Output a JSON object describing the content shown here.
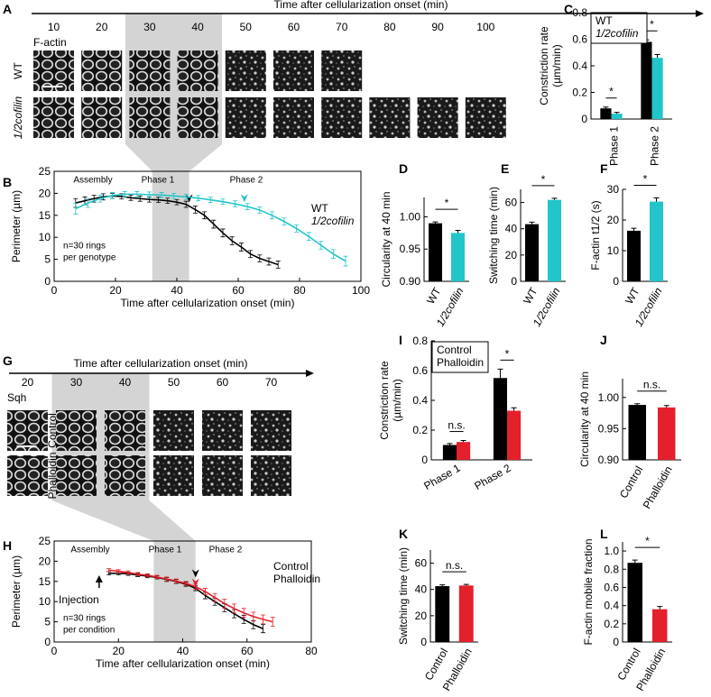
{
  "image_panels": [
    {
      "panel": "A",
      "axis_label": "Time after cellularization onset (min)",
      "times": [
        10,
        20,
        30,
        40,
        50,
        60,
        70,
        80,
        90,
        100
      ],
      "stain": "F-actin",
      "rows": [
        {
          "label": "WT",
          "color": "#000000"
        },
        {
          "label": "1/2cofilin",
          "color": "#22c5c9"
        }
      ]
    },
    {
      "panel": "G",
      "axis_label": "Time after cellularization onset (min)",
      "times": [
        20,
        30,
        40,
        50,
        60,
        70
      ],
      "stain": "Sqh",
      "rows": [
        {
          "label": "Control",
          "color": "#000000"
        },
        {
          "label": "Phalloidin",
          "color": "#e3202b"
        }
      ]
    }
  ],
  "chart_data": [
    {
      "panel": "C",
      "type": "bar",
      "ylabel": [
        "Constriction rate",
        "(µm/min)"
      ],
      "categories": [
        "Phase 1",
        "Phase 2"
      ],
      "series": [
        {
          "name": "WT",
          "color": "#000000",
          "values": [
            0.08,
            0.58
          ],
          "errors": [
            0.01,
            0.015
          ]
        },
        {
          "name": "1/2cofilin",
          "color": "#22c5c9",
          "values": [
            0.04,
            0.46
          ],
          "errors": [
            0.01,
            0.025
          ]
        }
      ],
      "ylim": [
        0,
        0.8
      ],
      "yticks": [
        0,
        0.2,
        0.4,
        0.6,
        0.8
      ],
      "significance": [
        "*",
        "*"
      ]
    },
    {
      "panel": "B",
      "type": "line",
      "xlabel": "Time after cellularization onset (min)",
      "ylabel": [
        "Perimeter (µm)"
      ],
      "xlim": [
        0,
        100
      ],
      "ylim": [
        0,
        25
      ],
      "xticks": [
        0,
        20,
        40,
        60,
        80,
        100
      ],
      "yticks": [
        0,
        5,
        10,
        15,
        20,
        25
      ],
      "phases": [
        "Assembly",
        "Phase 1",
        "Phase 2"
      ],
      "shade": [
        32,
        44
      ],
      "note": [
        "n=30 rings",
        "per genotype"
      ],
      "series": [
        {
          "name": "WT",
          "color": "#000000",
          "arrow_x": 44,
          "x": [
            7,
            10,
            13,
            16,
            19,
            22,
            25,
            28,
            31,
            34,
            37,
            40,
            43,
            46,
            49,
            52,
            55,
            58,
            61,
            64,
            67,
            70,
            73
          ],
          "values": [
            17.8,
            18.3,
            18.8,
            19.2,
            19.4,
            19.3,
            19.0,
            18.8,
            18.6,
            18.5,
            18.3,
            18.0,
            17.5,
            16.3,
            15.0,
            13.0,
            11.0,
            9.2,
            7.8,
            6.2,
            5.2,
            4.5,
            3.8
          ],
          "errors": [
            1.0,
            0.9,
            0.8,
            0.7,
            0.6,
            0.6,
            0.6,
            0.6,
            0.6,
            0.6,
            0.6,
            0.6,
            0.7,
            0.8,
            0.8,
            0.9,
            0.9,
            0.9,
            0.9,
            0.8,
            0.8,
            0.8,
            0.8
          ]
        },
        {
          "name": "1/2cofilin",
          "color": "#22c5c9",
          "arrow_x": 62,
          "x": [
            7,
            11,
            15,
            19,
            23,
            27,
            31,
            35,
            39,
            43,
            47,
            51,
            55,
            59,
            63,
            67,
            71,
            75,
            79,
            83,
            87,
            91,
            95
          ],
          "values": [
            16.5,
            17.8,
            18.8,
            19.5,
            19.8,
            19.8,
            19.7,
            19.6,
            19.4,
            19.2,
            18.9,
            18.5,
            18.1,
            17.6,
            17.0,
            16.2,
            15.0,
            13.6,
            12.0,
            10.2,
            8.2,
            6.2,
            4.6
          ],
          "errors": [
            1.2,
            1.0,
            0.8,
            0.7,
            0.6,
            0.6,
            0.6,
            0.6,
            0.6,
            0.6,
            0.6,
            0.6,
            0.6,
            0.7,
            0.7,
            0.7,
            0.8,
            0.8,
            0.8,
            0.9,
            0.9,
            1.0,
            1.1
          ]
        }
      ]
    },
    {
      "panel": "D",
      "type": "bar",
      "ylabel": [
        "Circularity at 40 min"
      ],
      "categories": [
        "WT",
        "1/2cofilin"
      ],
      "colors": [
        "#000000",
        "#22c5c9"
      ],
      "values": [
        0.99,
        0.975
      ],
      "errors": [
        0.002,
        0.004
      ],
      "ylim": [
        0.9,
        1.03
      ],
      "yticks": [
        {
          "value": 0.9,
          "label": "0.90"
        },
        {
          "value": 0.95,
          "label": "0.95"
        },
        {
          "value": 1,
          "label": "1.00"
        }
      ],
      "significance": [
        "*"
      ]
    },
    {
      "panel": "E",
      "type": "bar",
      "ylabel": [
        "Switching time (min)"
      ],
      "categories": [
        "WT",
        "1/2cofilin"
      ],
      "colors": [
        "#000000",
        "#22c5c9"
      ],
      "values": [
        43.5,
        62
      ],
      "errors": [
        1.5,
        1.2
      ],
      "ylim": [
        0,
        70
      ],
      "yticks": [
        0,
        20,
        40,
        60
      ],
      "significance": [
        "*"
      ]
    },
    {
      "panel": "F",
      "type": "bar",
      "ylabel": [
        "F-actin t1/2 (s)"
      ],
      "categories": [
        "WT",
        "1/2cofilin"
      ],
      "colors": [
        "#000000",
        "#22c5c9"
      ],
      "values": [
        16.5,
        26
      ],
      "errors": [
        0.8,
        1.2
      ],
      "ylim": [
        0,
        30
      ],
      "yticks": [
        0,
        10,
        20,
        30
      ],
      "significance": [
        "*"
      ]
    },
    {
      "panel": "I",
      "type": "bar",
      "ylabel": [
        "Constriction rate",
        "(µm/min)"
      ],
      "categories": [
        "Phase 1",
        "Phase 2"
      ],
      "series": [
        {
          "name": "Control",
          "color": "#000000",
          "values": [
            0.1,
            0.55
          ],
          "errors": [
            0.01,
            0.06
          ]
        },
        {
          "name": "Phalloidin",
          "color": "#e3202b",
          "values": [
            0.12,
            0.33
          ],
          "errors": [
            0.01,
            0.02
          ]
        }
      ],
      "ylim": [
        0,
        0.8
      ],
      "yticks": [
        0,
        0.2,
        0.4,
        0.6,
        0.8
      ],
      "significance": [
        "n.s.",
        "*"
      ]
    },
    {
      "panel": "J",
      "type": "bar",
      "ylabel": [
        "Circularity at 40 min"
      ],
      "categories": [
        "Control",
        "Phalloidin"
      ],
      "colors": [
        "#000000",
        "#e3202b"
      ],
      "values": [
        0.988,
        0.984
      ],
      "errors": [
        0.002,
        0.003
      ],
      "ylim": [
        0.9,
        1.03
      ],
      "yticks": [
        {
          "value": 0.9,
          "label": "0.90"
        },
        {
          "value": 0.95,
          "label": "0.95"
        },
        {
          "value": 1,
          "label": "1.00"
        }
      ],
      "significance": [
        "n.s."
      ]
    },
    {
      "panel": "H",
      "type": "line",
      "xlabel": "Time after cellularization onset (min)",
      "ylabel": [
        "Perimeter (µm)"
      ],
      "xlim": [
        0,
        80
      ],
      "ylim": [
        0,
        25
      ],
      "xticks": [
        0,
        20,
        40,
        60,
        80
      ],
      "yticks": [
        0,
        5,
        10,
        15,
        20,
        25
      ],
      "phases": [
        "Assembly",
        "Phase 1",
        "Phase 2"
      ],
      "shade": [
        31,
        44
      ],
      "note": [
        "n=30 rings",
        "per condition"
      ],
      "injection": {
        "label": "Injection",
        "x": 14
      },
      "series": [
        {
          "name": "Control",
          "color": "#000000",
          "arrow_x": 44,
          "x": [
            17,
            20,
            23,
            26,
            29,
            32,
            35,
            38,
            41,
            44,
            47,
            50,
            53,
            56,
            59,
            62,
            65
          ],
          "values": [
            17.0,
            17.0,
            16.9,
            16.6,
            16.3,
            16.0,
            15.5,
            15.0,
            14.3,
            13.3,
            11.5,
            10.0,
            8.5,
            7.0,
            5.6,
            4.3,
            3.3
          ],
          "errors": [
            0.4,
            0.4,
            0.4,
            0.4,
            0.4,
            0.4,
            0.5,
            0.5,
            0.5,
            0.6,
            0.8,
            0.9,
            1.0,
            1.0,
            1.0,
            1.0,
            1.0
          ]
        },
        {
          "name": "Phalloidin",
          "color": "#e3202b",
          "arrow_x": 44,
          "x": [
            17,
            20,
            23,
            26,
            29,
            32,
            35,
            38,
            41,
            44,
            47,
            50,
            53,
            56,
            59,
            62,
            65,
            68
          ],
          "values": [
            17.8,
            17.5,
            17.2,
            16.8,
            16.5,
            16.1,
            15.6,
            15.1,
            14.5,
            13.7,
            12.5,
            11.0,
            9.5,
            8.3,
            7.2,
            6.3,
            5.6,
            5.0
          ],
          "errors": [
            0.4,
            0.4,
            0.4,
            0.4,
            0.4,
            0.4,
            0.5,
            0.5,
            0.5,
            0.6,
            0.8,
            1.0,
            1.1,
            1.1,
            1.1,
            1.1,
            1.1,
            1.1
          ]
        }
      ]
    },
    {
      "panel": "K",
      "type": "bar",
      "ylabel": [
        "Switching time (min)"
      ],
      "categories": [
        "Control",
        "Phalloidin"
      ],
      "colors": [
        "#000000",
        "#e3202b"
      ],
      "values": [
        42.5,
        43
      ],
      "errors": [
        1.0,
        0.8
      ],
      "ylim": [
        0,
        70
      ],
      "yticks": [
        0,
        20,
        40,
        60
      ],
      "significance": [
        "n.s."
      ]
    },
    {
      "panel": "L",
      "type": "bar",
      "ylabel": [
        "F-actin mobile fraction"
      ],
      "categories": [
        "Control",
        "Phalloidin"
      ],
      "colors": [
        "#000000",
        "#e3202b"
      ],
      "values": [
        0.87,
        0.36
      ],
      "errors": [
        0.03,
        0.03
      ],
      "ylim": [
        0,
        1.1
      ],
      "yticks": [
        0,
        0.2,
        0.4,
        0.6,
        0.8,
        {
          "value": 1,
          "label": "1.0"
        }
      ],
      "significance": [
        "*"
      ]
    }
  ]
}
